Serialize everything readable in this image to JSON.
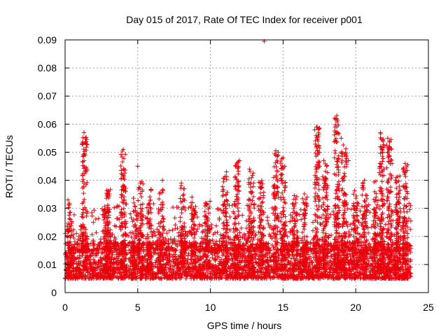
{
  "chart_data": {
    "type": "scatter",
    "title": "Day 015 of 2017, Rate Of TEC Index for receiver p001",
    "xlabel": "GPS time / hours",
    "ylabel": "ROTI / TECUs",
    "xlim": [
      0,
      25
    ],
    "ylim": [
      0,
      0.09
    ],
    "x_ticks": [
      0,
      5,
      10,
      15,
      20,
      25
    ],
    "x_tick_labels": [
      "0",
      "5",
      "10",
      "15",
      "20",
      "25"
    ],
    "y_ticks": [
      0,
      0.01,
      0.02,
      0.03,
      0.04,
      0.05,
      0.06,
      0.07,
      0.08,
      0.09
    ],
    "y_tick_labels": [
      "0",
      "0.01",
      "0.02",
      "0.03",
      "0.04",
      "0.05",
      "0.06",
      "0.07",
      "0.08",
      "0.09"
    ],
    "grid": true,
    "legend": "none",
    "marker": "+",
    "series_color": "#e8000b",
    "x_data_range": [
      0,
      23.8
    ],
    "baseline_band": [
      0.005,
      0.018
    ],
    "notable_points": [
      {
        "x": 13.7,
        "y": 0.0895
      },
      {
        "x": 18.7,
        "y": 0.063
      },
      {
        "x": 17.3,
        "y": 0.059
      },
      {
        "x": 18.7,
        "y": 0.059
      },
      {
        "x": 1.3,
        "y": 0.057
      },
      {
        "x": 21.7,
        "y": 0.057
      },
      {
        "x": 1.4,
        "y": 0.055
      },
      {
        "x": 19.0,
        "y": 0.055
      },
      {
        "x": 17.4,
        "y": 0.054
      },
      {
        "x": 22.2,
        "y": 0.055
      },
      {
        "x": 4.0,
        "y": 0.051
      },
      {
        "x": 14.5,
        "y": 0.0505
      },
      {
        "x": 19.3,
        "y": 0.05
      },
      {
        "x": 21.8,
        "y": 0.051
      },
      {
        "x": 17.5,
        "y": 0.05
      },
      {
        "x": 15.0,
        "y": 0.048
      },
      {
        "x": 12.0,
        "y": 0.047
      },
      {
        "x": 17.8,
        "y": 0.047
      },
      {
        "x": 19.5,
        "y": 0.047
      },
      {
        "x": 22.5,
        "y": 0.046
      },
      {
        "x": 23.4,
        "y": 0.046
      },
      {
        "x": 5.0,
        "y": 0.045
      },
      {
        "x": 18.0,
        "y": 0.045
      },
      {
        "x": 1.5,
        "y": 0.044
      },
      {
        "x": 11.1,
        "y": 0.043
      },
      {
        "x": 20.6,
        "y": 0.04
      },
      {
        "x": 6.7,
        "y": 0.04
      },
      {
        "x": 8.0,
        "y": 0.039
      },
      {
        "x": 0.2,
        "y": 0.033
      }
    ],
    "activity_bursts": [
      {
        "x": 0.3,
        "peak": 0.033
      },
      {
        "x": 1.35,
        "peak": 0.057
      },
      {
        "x": 2.8,
        "peak": 0.03
      },
      {
        "x": 3.0,
        "peak": 0.037
      },
      {
        "x": 4.0,
        "peak": 0.051
      },
      {
        "x": 4.8,
        "peak": 0.034
      },
      {
        "x": 5.2,
        "peak": 0.04
      },
      {
        "x": 5.8,
        "peak": 0.038
      },
      {
        "x": 6.6,
        "peak": 0.037
      },
      {
        "x": 8.1,
        "peak": 0.039
      },
      {
        "x": 8.8,
        "peak": 0.034
      },
      {
        "x": 9.8,
        "peak": 0.033
      },
      {
        "x": 11.0,
        "peak": 0.042
      },
      {
        "x": 11.8,
        "peak": 0.047
      },
      {
        "x": 12.8,
        "peak": 0.044
      },
      {
        "x": 13.5,
        "peak": 0.04
      },
      {
        "x": 14.5,
        "peak": 0.05
      },
      {
        "x": 15.0,
        "peak": 0.048
      },
      {
        "x": 15.8,
        "peak": 0.035
      },
      {
        "x": 16.5,
        "peak": 0.036
      },
      {
        "x": 17.35,
        "peak": 0.059
      },
      {
        "x": 17.9,
        "peak": 0.047
      },
      {
        "x": 18.7,
        "peak": 0.063
      },
      {
        "x": 19.2,
        "peak": 0.055
      },
      {
        "x": 20.0,
        "peak": 0.037
      },
      {
        "x": 20.6,
        "peak": 0.04
      },
      {
        "x": 21.4,
        "peak": 0.04
      },
      {
        "x": 21.8,
        "peak": 0.057
      },
      {
        "x": 22.3,
        "peak": 0.055
      },
      {
        "x": 22.9,
        "peak": 0.043
      },
      {
        "x": 23.4,
        "peak": 0.046
      }
    ]
  }
}
